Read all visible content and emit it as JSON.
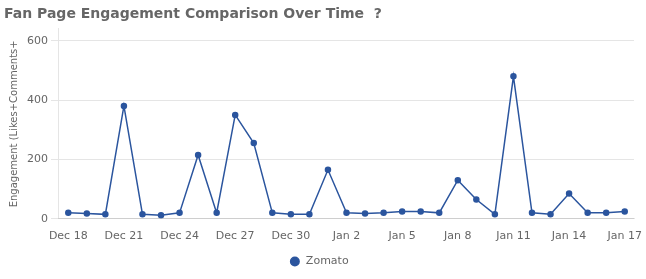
{
  "chart_data": {
    "type": "line",
    "title": "Fan Page Engagement Comparison Over Time  ?",
    "y_label": "Engagement (Likes+Comments+",
    "x": [
      0,
      1,
      2,
      3,
      4,
      5,
      6,
      7,
      8,
      9,
      10,
      11,
      12,
      13,
      14,
      15,
      16,
      17,
      18,
      19,
      20,
      21,
      22,
      23,
      24,
      25,
      26,
      27,
      28,
      29,
      30
    ],
    "series": [
      {
        "name": "Zomato",
        "color": "#2b559e",
        "marker": "circle",
        "values": [
          20,
          18,
          15,
          380,
          15,
          12,
          20,
          215,
          20,
          350,
          255,
          20,
          15,
          15,
          165,
          20,
          18,
          20,
          25,
          25,
          20,
          130,
          65,
          15,
          480,
          20,
          15,
          85,
          20,
          20,
          25
        ]
      }
    ],
    "xlim": [
      -0.5,
      30.5
    ],
    "xticks": [
      {
        "value": 0,
        "label": "Dec 18"
      },
      {
        "value": 3,
        "label": "Dec 21"
      },
      {
        "value": 6,
        "label": "Dec 24"
      },
      {
        "value": 9,
        "label": "Dec 27"
      },
      {
        "value": 12,
        "label": "Dec 30"
      },
      {
        "value": 15,
        "label": "Jan 2"
      },
      {
        "value": 18,
        "label": "Jan 5"
      },
      {
        "value": 21,
        "label": "Jan 8"
      },
      {
        "value": 24,
        "label": "Jan 11"
      },
      {
        "value": 27,
        "label": "Jan 14"
      },
      {
        "value": 30,
        "label": "Jan 17"
      }
    ],
    "ylim": [
      0,
      640
    ],
    "yticks": [
      0,
      200,
      400,
      600
    ],
    "grid": "y",
    "legend": "bottom"
  }
}
